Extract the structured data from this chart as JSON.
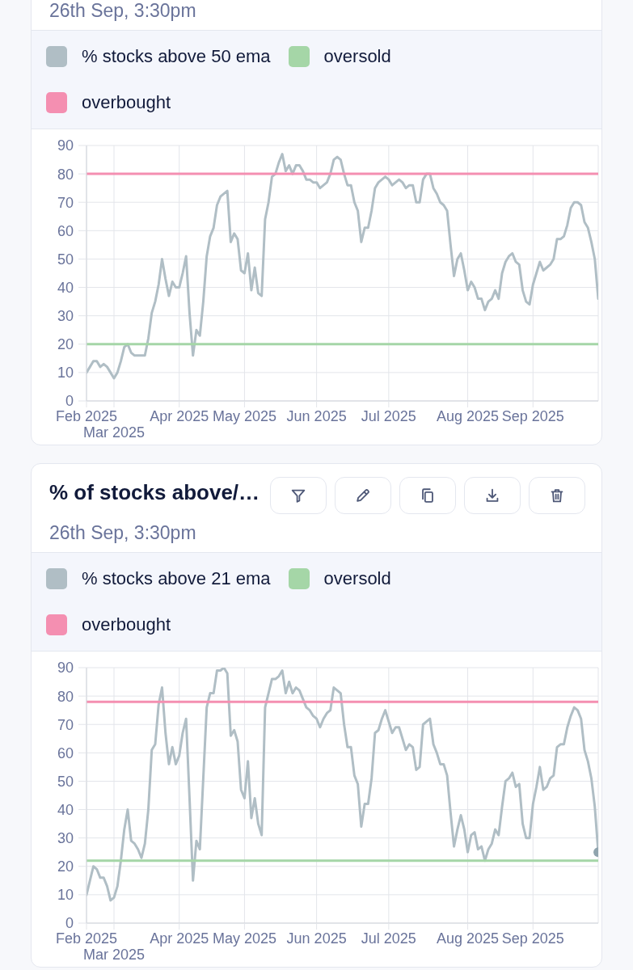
{
  "chart_data": [
    {
      "type": "line",
      "subtitle": "26th Sep, 3:30pm",
      "categories": [
        "Feb 2025",
        null,
        null,
        null,
        null,
        null,
        null,
        null,
        "Mar 2025",
        null,
        null,
        null,
        null,
        null,
        null,
        null,
        null,
        null,
        null,
        null,
        null,
        null,
        null,
        null,
        null,
        null,
        null,
        "Apr 2025",
        null,
        null,
        null,
        null,
        null,
        null,
        null,
        null,
        null,
        null,
        null,
        null,
        null,
        null,
        null,
        null,
        null,
        null,
        "May 2025",
        null,
        null,
        null,
        null,
        null,
        null,
        null,
        null,
        null,
        null,
        null,
        null,
        null,
        null,
        null,
        null,
        null,
        null,
        null,
        null,
        "Jun 2025",
        null,
        null,
        null,
        null,
        null,
        null,
        null,
        null,
        null,
        null,
        null,
        null,
        null,
        null,
        null,
        null,
        null,
        null,
        null,
        null,
        "Jul 2025",
        null,
        null,
        null,
        null,
        null,
        null,
        null,
        null,
        null,
        null,
        null,
        null,
        null,
        null,
        null,
        null,
        null,
        null,
        null,
        null,
        null,
        null,
        "Aug 2025",
        null,
        null,
        null,
        null,
        null,
        null,
        null,
        null,
        null,
        null,
        null,
        null,
        null,
        null,
        null,
        null,
        null,
        null,
        "Sep 2025",
        null,
        null,
        null,
        null,
        null,
        null,
        null,
        null,
        null,
        null,
        null,
        null,
        null,
        null,
        null,
        null,
        null,
        null,
        null
      ],
      "series": [
        {
          "name": "% stocks above 50 ema",
          "color": "#b0bec5",
          "values": [
            10,
            12,
            14,
            14,
            12,
            13,
            12,
            10,
            8,
            10,
            14,
            19,
            20,
            17,
            16,
            16,
            16,
            16,
            22,
            31,
            35,
            41,
            50,
            43,
            37,
            42,
            40,
            40,
            45,
            51,
            31,
            16,
            25,
            23,
            35,
            51,
            58,
            61,
            69,
            72,
            73,
            74,
            56,
            59,
            57,
            46,
            45,
            52,
            39,
            47,
            38,
            37,
            64,
            70,
            79,
            80,
            84,
            87,
            81,
            83,
            80,
            83,
            83,
            81,
            78,
            78,
            77,
            77,
            75,
            76,
            77,
            80,
            85,
            86,
            85,
            80,
            76,
            76,
            70,
            67,
            56,
            61,
            61,
            67,
            75,
            77,
            78,
            79,
            78,
            76,
            77,
            78,
            77,
            75,
            76,
            76,
            70,
            70,
            78,
            80,
            80,
            75,
            73,
            70,
            69,
            67,
            55,
            44,
            50,
            52,
            46,
            39,
            42,
            40,
            36,
            36,
            32,
            35,
            36,
            39,
            36,
            45,
            49,
            51,
            52,
            49,
            48,
            39,
            35,
            34,
            41,
            45,
            49,
            46,
            47,
            48,
            50,
            57,
            57,
            58,
            62,
            68,
            70,
            70,
            69,
            63,
            61,
            56,
            50,
            36
          ]
        },
        {
          "name": "oversold",
          "color": "#a5d6a7",
          "values": [
            20,
            20,
            20,
            20,
            20,
            20,
            20,
            20,
            20,
            20,
            20,
            20,
            20,
            20,
            20,
            20,
            20,
            20,
            20,
            20,
            20,
            20,
            20,
            20,
            20,
            20,
            20,
            20,
            20,
            20,
            20,
            20,
            20,
            20,
            20,
            20,
            20,
            20,
            20,
            20,
            20,
            20,
            20,
            20,
            20,
            20,
            20,
            20,
            20,
            20,
            20,
            20,
            20,
            20,
            20,
            20,
            20,
            20,
            20,
            20,
            20,
            20,
            20,
            20,
            20,
            20,
            20,
            20,
            20,
            20,
            20,
            20,
            20,
            20,
            20,
            20,
            20,
            20,
            20,
            20,
            20,
            20,
            20,
            20,
            20,
            20,
            20,
            20,
            20,
            20,
            20,
            20,
            20,
            20,
            20,
            20,
            20,
            20,
            20,
            20,
            20,
            20,
            20,
            20,
            20,
            20,
            20,
            20,
            20,
            20,
            20,
            20,
            20,
            20,
            20,
            20,
            20,
            20,
            20,
            20,
            20,
            20,
            20,
            20,
            20,
            20,
            20,
            20,
            20,
            20,
            20,
            20,
            20,
            20,
            20,
            20,
            20,
            20,
            20,
            20,
            20,
            20,
            20,
            20,
            20,
            20,
            20,
            20,
            20,
            20
          ]
        },
        {
          "name": "overbought",
          "color": "#f48fb1",
          "values": [
            80,
            80,
            80,
            80,
            80,
            80,
            80,
            80,
            80,
            80,
            80,
            80,
            80,
            80,
            80,
            80,
            80,
            80,
            80,
            80,
            80,
            80,
            80,
            80,
            80,
            80,
            80,
            80,
            80,
            80,
            80,
            80,
            80,
            80,
            80,
            80,
            80,
            80,
            80,
            80,
            80,
            80,
            80,
            80,
            80,
            80,
            80,
            80,
            80,
            80,
            80,
            80,
            80,
            80,
            80,
            80,
            80,
            80,
            80,
            80,
            80,
            80,
            80,
            80,
            80,
            80,
            80,
            80,
            80,
            80,
            80,
            80,
            80,
            80,
            80,
            80,
            80,
            80,
            80,
            80,
            80,
            80,
            80,
            80,
            80,
            80,
            80,
            80,
            80,
            80,
            80,
            80,
            80,
            80,
            80,
            80,
            80,
            80,
            80,
            80,
            80,
            80,
            80,
            80,
            80,
            80,
            80,
            80,
            80,
            80,
            80,
            80,
            80,
            80,
            80,
            80,
            80,
            80,
            80,
            80,
            80,
            80,
            80,
            80,
            80,
            80,
            80,
            80,
            80,
            80,
            80,
            80,
            80,
            80,
            80,
            80,
            80,
            80,
            80,
            80,
            80,
            80,
            80,
            80,
            80,
            80,
            80,
            80,
            80,
            80
          ]
        }
      ],
      "ylim": [
        0,
        90
      ],
      "yticks": [
        0,
        10,
        20,
        30,
        40,
        50,
        60,
        70,
        80,
        90
      ],
      "grid": true,
      "legend": "top"
    },
    {
      "type": "line",
      "title": "% of stocks above/…",
      "subtitle": "26th Sep, 3:30pm",
      "categories": [
        "Feb 2025",
        null,
        null,
        null,
        null,
        null,
        null,
        null,
        "Mar 2025",
        null,
        null,
        null,
        null,
        null,
        null,
        null,
        null,
        null,
        null,
        null,
        null,
        null,
        null,
        null,
        null,
        null,
        null,
        "Apr 2025",
        null,
        null,
        null,
        null,
        null,
        null,
        null,
        null,
        null,
        null,
        null,
        null,
        null,
        null,
        null,
        null,
        null,
        null,
        "May 2025",
        null,
        null,
        null,
        null,
        null,
        null,
        null,
        null,
        null,
        null,
        null,
        null,
        null,
        null,
        null,
        null,
        null,
        null,
        null,
        null,
        "Jun 2025",
        null,
        null,
        null,
        null,
        null,
        null,
        null,
        null,
        null,
        null,
        null,
        null,
        null,
        null,
        null,
        null,
        null,
        null,
        null,
        null,
        "Jul 2025",
        null,
        null,
        null,
        null,
        null,
        null,
        null,
        null,
        null,
        null,
        null,
        null,
        null,
        null,
        null,
        null,
        null,
        null,
        null,
        null,
        null,
        null,
        "Aug 2025",
        null,
        null,
        null,
        null,
        null,
        null,
        null,
        null,
        null,
        null,
        null,
        null,
        null,
        null,
        null,
        null,
        null,
        null,
        "Sep 2025",
        null,
        null,
        null,
        null,
        null,
        null,
        null,
        null,
        null,
        null,
        null,
        null,
        null,
        null,
        null,
        null,
        null,
        null,
        null
      ],
      "series": [
        {
          "name": "% stocks above 21 ema",
          "color": "#b0bec5",
          "values": [
            10,
            15,
            20,
            19,
            16,
            16,
            13,
            8,
            9,
            13,
            22,
            33,
            40,
            29,
            28,
            26,
            23,
            28,
            40,
            61,
            63,
            77,
            83,
            67,
            56,
            62,
            56,
            59,
            67,
            72,
            44,
            15,
            29,
            26,
            51,
            76,
            81,
            81,
            89,
            89,
            90,
            88,
            66,
            68,
            64,
            47,
            44,
            57,
            37,
            44,
            35,
            31,
            76,
            81,
            86,
            86,
            87,
            89,
            81,
            85,
            81,
            83,
            82,
            79,
            76,
            75,
            73,
            72,
            69,
            72,
            74,
            75,
            83,
            82,
            81,
            70,
            62,
            62,
            52,
            49,
            34,
            42,
            42,
            51,
            67,
            68,
            72,
            75,
            71,
            67,
            69,
            69,
            65,
            61,
            63,
            62,
            54,
            55,
            70,
            71,
            72,
            63,
            60,
            56,
            56,
            52,
            39,
            27,
            33,
            38,
            33,
            25,
            31,
            32,
            26,
            27,
            22,
            26,
            28,
            33,
            31,
            41,
            50,
            51,
            53,
            48,
            49,
            35,
            30,
            30,
            42,
            48,
            55,
            47,
            48,
            51,
            52,
            62,
            63,
            63,
            69,
            73,
            76,
            75,
            72,
            61,
            57,
            51,
            41,
            25
          ]
        },
        {
          "name": "oversold",
          "color": "#a5d6a7",
          "values": [
            22,
            22,
            22,
            22,
            22,
            22,
            22,
            22,
            22,
            22,
            22,
            22,
            22,
            22,
            22,
            22,
            22,
            22,
            22,
            22,
            22,
            22,
            22,
            22,
            22,
            22,
            22,
            22,
            22,
            22,
            22,
            22,
            22,
            22,
            22,
            22,
            22,
            22,
            22,
            22,
            22,
            22,
            22,
            22,
            22,
            22,
            22,
            22,
            22,
            22,
            22,
            22,
            22,
            22,
            22,
            22,
            22,
            22,
            22,
            22,
            22,
            22,
            22,
            22,
            22,
            22,
            22,
            22,
            22,
            22,
            22,
            22,
            22,
            22,
            22,
            22,
            22,
            22,
            22,
            22,
            22,
            22,
            22,
            22,
            22,
            22,
            22,
            22,
            22,
            22,
            22,
            22,
            22,
            22,
            22,
            22,
            22,
            22,
            22,
            22,
            22,
            22,
            22,
            22,
            22,
            22,
            22,
            22,
            22,
            22,
            22,
            22,
            22,
            22,
            22,
            22,
            22,
            22,
            22,
            22,
            22,
            22,
            22,
            22,
            22,
            22,
            22,
            22,
            22,
            22,
            22,
            22,
            22,
            22,
            22,
            22,
            22,
            22,
            22,
            22,
            22,
            22,
            22,
            22,
            22,
            22,
            22,
            22,
            22,
            22
          ]
        },
        {
          "name": "overbought",
          "color": "#f48fb1",
          "values": [
            78,
            78,
            78,
            78,
            78,
            78,
            78,
            78,
            78,
            78,
            78,
            78,
            78,
            78,
            78,
            78,
            78,
            78,
            78,
            78,
            78,
            78,
            78,
            78,
            78,
            78,
            78,
            78,
            78,
            78,
            78,
            78,
            78,
            78,
            78,
            78,
            78,
            78,
            78,
            78,
            78,
            78,
            78,
            78,
            78,
            78,
            78,
            78,
            78,
            78,
            78,
            78,
            78,
            78,
            78,
            78,
            78,
            78,
            78,
            78,
            78,
            78,
            78,
            78,
            78,
            78,
            78,
            78,
            78,
            78,
            78,
            78,
            78,
            78,
            78,
            78,
            78,
            78,
            78,
            78,
            78,
            78,
            78,
            78,
            78,
            78,
            78,
            78,
            78,
            78,
            78,
            78,
            78,
            78,
            78,
            78,
            78,
            78,
            78,
            78,
            78,
            78,
            78,
            78,
            78,
            78,
            78,
            78,
            78,
            78,
            78,
            78,
            78,
            78,
            78,
            78,
            78,
            78,
            78,
            78,
            78,
            78,
            78,
            78,
            78,
            78,
            78,
            78,
            78,
            78,
            78,
            78,
            78,
            78,
            78,
            78,
            78,
            78,
            78,
            78,
            78,
            78,
            78,
            78,
            78,
            78,
            78,
            78,
            78,
            78
          ]
        },
        {
          "type": "scatter",
          "color": "#90a4ae",
          "values": [
            null,
            null,
            null,
            null,
            null,
            null,
            null,
            null,
            null,
            null,
            null,
            null,
            null,
            null,
            null,
            null,
            null,
            null,
            null,
            null,
            null,
            null,
            null,
            null,
            null,
            null,
            null,
            null,
            null,
            null,
            null,
            null,
            null,
            null,
            null,
            null,
            null,
            null,
            null,
            null,
            null,
            null,
            null,
            null,
            null,
            null,
            null,
            null,
            null,
            null,
            null,
            null,
            null,
            null,
            null,
            null,
            null,
            null,
            null,
            null,
            null,
            null,
            null,
            null,
            null,
            null,
            null,
            null,
            null,
            null,
            null,
            null,
            null,
            null,
            null,
            null,
            null,
            null,
            null,
            null,
            null,
            null,
            null,
            null,
            null,
            null,
            null,
            null,
            null,
            null,
            null,
            null,
            null,
            null,
            null,
            null,
            null,
            null,
            null,
            null,
            null,
            null,
            null,
            null,
            null,
            null,
            null,
            null,
            null,
            null,
            null,
            null,
            null,
            null,
            null,
            null,
            null,
            null,
            null,
            null,
            null,
            null,
            null,
            null,
            null,
            null,
            null,
            null,
            null,
            null,
            null,
            null,
            null,
            null,
            null,
            null,
            null,
            null,
            null,
            null,
            null,
            null,
            null,
            null,
            null,
            null,
            null,
            null,
            null,
            25
          ]
        }
      ],
      "ylim": [
        0,
        90
      ],
      "yticks": [
        0,
        10,
        20,
        30,
        40,
        50,
        60,
        70,
        80,
        90
      ],
      "grid": true,
      "legend": "top"
    }
  ]
}
